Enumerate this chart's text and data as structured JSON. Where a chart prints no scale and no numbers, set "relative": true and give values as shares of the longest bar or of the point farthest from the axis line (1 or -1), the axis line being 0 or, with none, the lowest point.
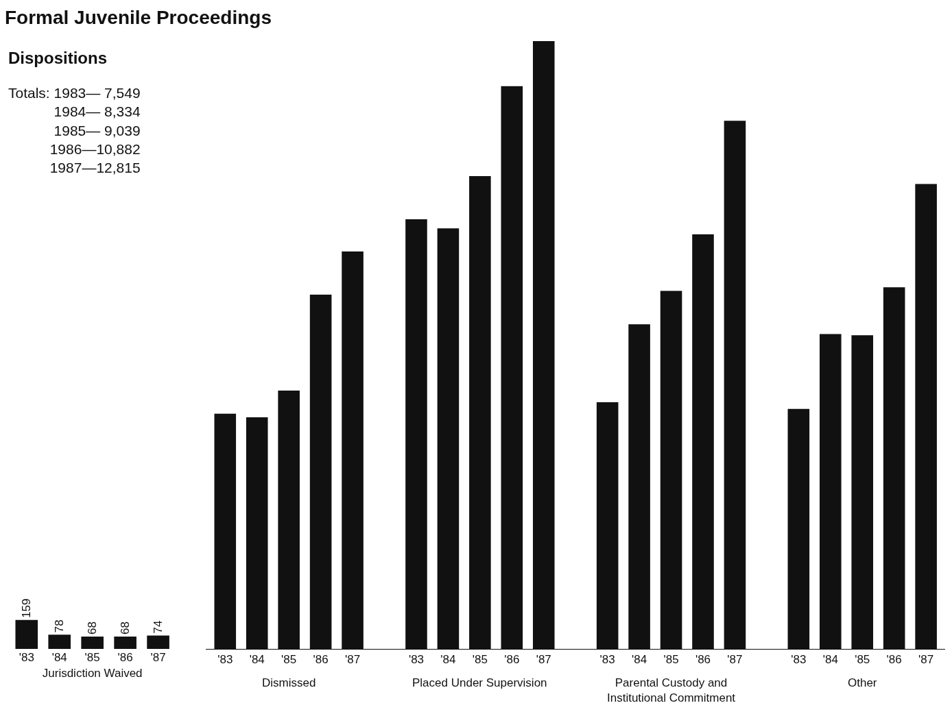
{
  "chart_data": [
    {
      "type": "bar",
      "title": "Formal Juvenile Proceedings",
      "subtitle": "Dispositions",
      "xlabel": "Jurisdiction Waived",
      "color": "#111111",
      "data_labels": true,
      "categories": [
        "'83",
        "'84",
        "'85",
        "'86",
        "'87"
      ],
      "values": [
        159,
        78,
        68,
        68,
        74
      ],
      "annotations": [
        "Totals: 1983— 7,549\n1984— 8,334\n1985— 9,039\n1986—10,882\n1987—12,815"
      ]
    },
    {
      "type": "bar",
      "relative": true,
      "color": "#111111",
      "categories": [
        "'83",
        "'84",
        "'85",
        "'86",
        "'87",
        "'83",
        "'84",
        "'85",
        "'86",
        "'87",
        "'83",
        "'84",
        "'85",
        "'86",
        "'87",
        "'83",
        "'84",
        "'85",
        "'86",
        "'87"
      ],
      "values": [
        0.387,
        0.381,
        0.425,
        0.583,
        0.654,
        0.707,
        0.692,
        0.778,
        0.926,
        1.0,
        0.406,
        0.534,
        0.589,
        0.682,
        0.869,
        0.395,
        0.518,
        0.516,
        0.595,
        0.765
      ],
      "annotations": [
        "Dismissed",
        "Placed Under Supervision",
        "Parental Custody and\nInstitutional Commitment",
        "Other"
      ]
    }
  ]
}
